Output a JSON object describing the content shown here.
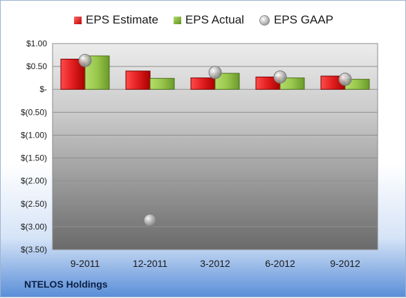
{
  "company": "NTELOS Holdings",
  "legend": {
    "estimate": "EPS Estimate",
    "actual": "EPS Actual",
    "gaap": "EPS GAAP"
  },
  "colors": {
    "estimate": "#d01818",
    "actual": "#8cbc3c",
    "gaap": "#a8a8a8",
    "plot_top": "#e9e9e9",
    "plot_bottom": "#6e6e6e"
  },
  "chart_data": {
    "type": "bar",
    "categories": [
      "9-2011",
      "12-2011",
      "3-2012",
      "6-2012",
      "9-2012"
    ],
    "series": [
      {
        "name": "EPS Estimate",
        "type": "bar",
        "values": [
          0.66,
          0.4,
          0.25,
          0.27,
          0.29
        ]
      },
      {
        "name": "EPS Actual",
        "type": "bar",
        "values": [
          0.73,
          0.24,
          0.35,
          0.25,
          0.22
        ]
      },
      {
        "name": "EPS GAAP",
        "type": "scatter",
        "values": [
          0.63,
          -2.86,
          0.37,
          0.27,
          0.22
        ]
      }
    ],
    "ylim": [
      -3.5,
      1.0
    ],
    "yticks": [
      1.0,
      0.5,
      0.0,
      -0.5,
      -1.0,
      -1.5,
      -2.0,
      -2.5,
      -3.0,
      -3.5
    ],
    "ytick_labels": [
      "$1.00",
      "$0.50",
      "$-",
      "$(0.50)",
      "$(1.00)",
      "$(1.50)",
      "$(2.00)",
      "$(2.50)",
      "$(3.00)",
      "$(3.50)"
    ],
    "grid": true,
    "legend_position": "top"
  }
}
